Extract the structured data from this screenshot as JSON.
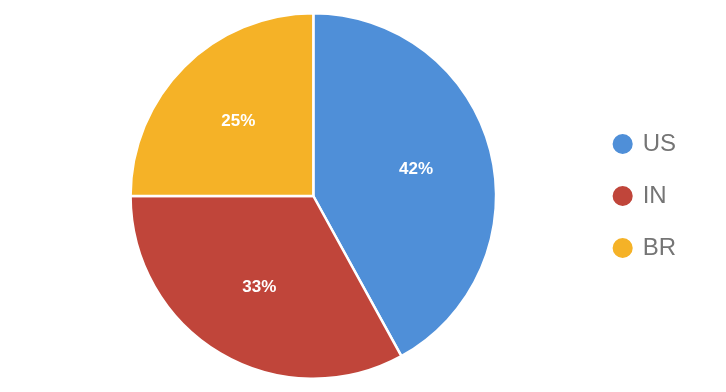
{
  "chart_data": {
    "type": "pie",
    "categories": [
      "US",
      "IN",
      "BR"
    ],
    "values": [
      42,
      33,
      25
    ],
    "value_labels": [
      "42%",
      "33%",
      "25%"
    ],
    "colors": [
      "#4F8FD8",
      "#C0453A",
      "#F5B227"
    ],
    "data_labels": true,
    "legend": "right"
  }
}
